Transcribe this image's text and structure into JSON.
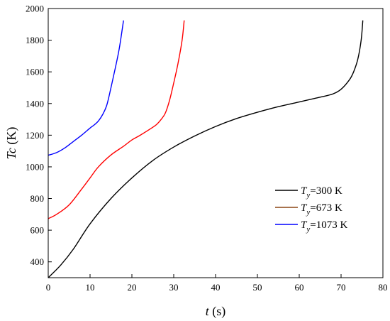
{
  "chart_data": {
    "type": "line",
    "title": "",
    "xlabel": {
      "var": "t",
      "unit": " (s)"
    },
    "ylabel": {
      "var": "Tc",
      "unit": " (K)"
    },
    "xlim": [
      0,
      80
    ],
    "ylim": [
      300,
      2000
    ],
    "xticks": [
      0,
      10,
      20,
      30,
      40,
      50,
      60,
      70,
      80
    ],
    "yticks": [
      400,
      600,
      800,
      1000,
      1200,
      1400,
      1600,
      1800,
      2000
    ],
    "grid": false,
    "legend": {
      "position": "lower-right"
    },
    "series": [
      {
        "name_prefix": "T",
        "name_sub": "y",
        "name_suffix": "=300 K",
        "color": "#000000",
        "x": [
          0,
          3,
          6,
          10,
          15,
          20,
          25,
          30,
          35,
          40,
          45,
          50,
          55,
          60,
          65,
          68,
          70,
          72,
          73,
          74,
          74.8,
          75.2
        ],
        "y": [
          300,
          380,
          480,
          640,
          800,
          930,
          1040,
          1125,
          1195,
          1255,
          1305,
          1345,
          1380,
          1410,
          1440,
          1460,
          1490,
          1550,
          1600,
          1680,
          1800,
          1925
        ]
      },
      {
        "name_prefix": "T",
        "name_sub": "y",
        "name_suffix": "=673 K",
        "color": "#ff0000",
        "legend_color": "#8b4513",
        "x": [
          0,
          2,
          5,
          8,
          10,
          12,
          15,
          18,
          20,
          22,
          25,
          26,
          27,
          28,
          29,
          30,
          31,
          32,
          32.5
        ],
        "y": [
          673,
          700,
          760,
          860,
          930,
          1000,
          1075,
          1130,
          1170,
          1200,
          1250,
          1270,
          1300,
          1340,
          1420,
          1530,
          1650,
          1800,
          1925
        ]
      },
      {
        "name_prefix": "T",
        "name_sub": "y",
        "name_suffix": "=1073 K",
        "color": "#0000ff",
        "x": [
          0,
          2,
          4,
          6,
          8,
          10,
          11,
          12,
          13,
          14,
          15,
          16,
          17,
          18
        ],
        "y": [
          1073,
          1090,
          1120,
          1160,
          1200,
          1245,
          1265,
          1290,
          1330,
          1390,
          1500,
          1620,
          1750,
          1925
        ]
      }
    ]
  }
}
